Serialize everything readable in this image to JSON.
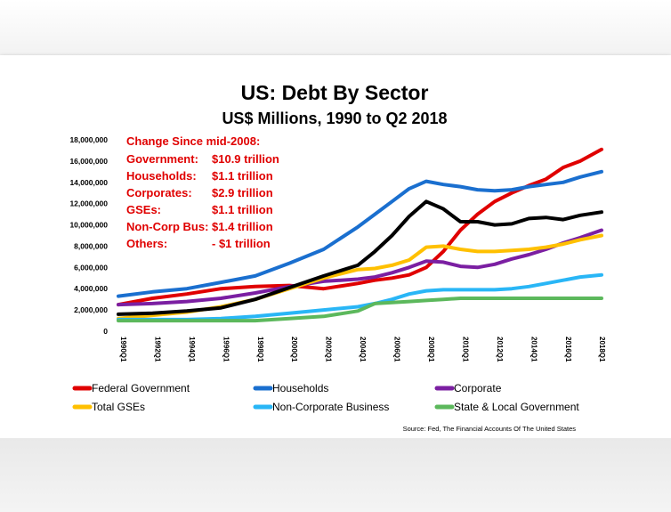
{
  "chart_data": {
    "type": "line",
    "title": "US: Debt By Sector",
    "subtitle": "US$ Millions, 1990 to Q2 2018",
    "ylim": [
      0,
      18000000
    ],
    "ytick_labels": [
      "0",
      "2,000,000",
      "4,000,000",
      "6,000,000",
      "8,000,000",
      "10,000,000",
      "12,000,000",
      "14,000,000",
      "16,000,000",
      "18,000,000"
    ],
    "xtick_labels": [
      "1990Q1",
      "1992Q1",
      "1994Q1",
      "1996Q1",
      "1998Q1",
      "2000Q1",
      "2002Q1",
      "2004Q1",
      "2006Q1",
      "2008Q1",
      "2010Q1",
      "2012Q1",
      "2014Q1",
      "2016Q1",
      "2018Q1"
    ],
    "x": [
      1990,
      1992,
      1994,
      1996,
      1998,
      2000,
      2002,
      2004,
      2005,
      2006,
      2007,
      2008,
      2009,
      2010,
      2011,
      2012,
      2013,
      2014,
      2015,
      2016,
      2017,
      2018.25
    ],
    "series": [
      {
        "name": "Federal Government",
        "color": "#e00000",
        "values": [
          2500000,
          3100000,
          3500000,
          4000000,
          4200000,
          4300000,
          4000000,
          4500000,
          4800000,
          5000000,
          5300000,
          6000000,
          7500000,
          9500000,
          11000000,
          12200000,
          13000000,
          13700000,
          14300000,
          15400000,
          16000000,
          17100000
        ]
      },
      {
        "name": "Households",
        "color": "#1a6fcf",
        "values": [
          3300000,
          3700000,
          4000000,
          4600000,
          5200000,
          6400000,
          7700000,
          9800000,
          11000000,
          12200000,
          13400000,
          14100000,
          13800000,
          13600000,
          13300000,
          13200000,
          13300000,
          13600000,
          13800000,
          14000000,
          14500000,
          15000000
        ]
      },
      {
        "name": "Corporate",
        "color": "#7b1fa2",
        "values": [
          2500000,
          2600000,
          2800000,
          3100000,
          3600000,
          4200000,
          4700000,
          4900000,
          5100000,
          5500000,
          6000000,
          6600000,
          6500000,
          6100000,
          6000000,
          6300000,
          6800000,
          7200000,
          7700000,
          8300000,
          8800000,
          9500000
        ]
      },
      {
        "name": "Total GSEs",
        "color": "#ffc000",
        "values": [
          1200000,
          1500000,
          1800000,
          2300000,
          3000000,
          4000000,
          5000000,
          5800000,
          5900000,
          6200000,
          6700000,
          7900000,
          8000000,
          7700000,
          7500000,
          7500000,
          7600000,
          7700000,
          7900000,
          8200000,
          8600000,
          9000000
        ]
      },
      {
        "name": "Non-Corporate Business",
        "color": "#29b6f6",
        "values": [
          1100000,
          1100000,
          1100000,
          1200000,
          1400000,
          1700000,
          2000000,
          2300000,
          2600000,
          3000000,
          3500000,
          3800000,
          3900000,
          3900000,
          3900000,
          3900000,
          4000000,
          4200000,
          4500000,
          4800000,
          5100000,
          5300000
        ]
      },
      {
        "name": "State & Local Government",
        "color": "#5cb85c",
        "values": [
          1000000,
          1000000,
          1000000,
          1000000,
          1000000,
          1200000,
          1400000,
          1900000,
          2600000,
          2700000,
          2800000,
          2900000,
          3000000,
          3100000,
          3100000,
          3100000,
          3100000,
          3100000,
          3100000,
          3100000,
          3100000,
          3100000
        ]
      },
      {
        "name": "",
        "color": "#000000",
        "values": [
          1600000,
          1700000,
          1900000,
          2200000,
          3000000,
          4100000,
          5200000,
          6200000,
          7500000,
          9000000,
          10800000,
          12200000,
          11500000,
          10300000,
          10300000,
          10000000,
          10100000,
          10600000,
          10700000,
          10500000,
          10900000,
          11200000
        ]
      }
    ],
    "annotations": {
      "heading": "Change Since mid-2008:",
      "lines": [
        {
          "label": "Government:",
          "value": "$10.9 trillion"
        },
        {
          "label": "Households:",
          "value": "$1.1 trillion"
        },
        {
          "label": "Corporates:",
          "value": "$2.9 trillion"
        },
        {
          "label": "GSEs:",
          "value": "$1.1 trillion"
        },
        {
          "label": "Non-Corp Bus:",
          "value": "$1.4 trillion"
        },
        {
          "label": "Others:",
          "value": "- $1 trillion"
        }
      ]
    },
    "source": "Source: Fed, The Financial Accounts Of The United States",
    "legend_position": "bottom",
    "grid": false
  }
}
